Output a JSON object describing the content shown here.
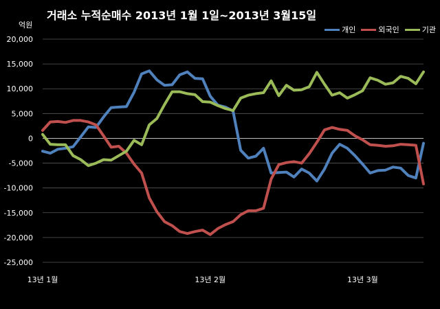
{
  "chart_data": {
    "type": "line",
    "title": "거래소  누적순매수 2013년 1월 1일~2013년 3월15일",
    "ylabel": "억원",
    "xlabel": "",
    "ylim": [
      -25000,
      20000
    ],
    "yticks": [
      20000,
      15000,
      10000,
      5000,
      0,
      -5000,
      -10000,
      -15000,
      -20000,
      -25000
    ],
    "ytick_labels": [
      "20,000",
      "15,000",
      "10,000",
      "5,000",
      "0",
      "-5,000",
      "-10,000",
      "-15,000",
      "-20,000",
      "-25,000"
    ],
    "x_tick_labels": [
      "13년 1월",
      "13년 2월",
      "13년 3월"
    ],
    "x_tick_positions": [
      1,
      23,
      43
    ],
    "grid": "horizontal",
    "legend_position": "top-right",
    "x": [
      1,
      2,
      3,
      4,
      5,
      6,
      7,
      8,
      9,
      10,
      11,
      12,
      13,
      14,
      15,
      16,
      17,
      18,
      19,
      20,
      21,
      22,
      23,
      24,
      25,
      26,
      27,
      28,
      29,
      30,
      31,
      32,
      33,
      34,
      35,
      36,
      37,
      38,
      39,
      40,
      41,
      42,
      43,
      44,
      45,
      46,
      47,
      48,
      49,
      50,
      51
    ],
    "series": [
      {
        "name": "개인",
        "color": "#4f81bd",
        "values": [
          -2600,
          -3000,
          -2200,
          -2000,
          -1700,
          300,
          2300,
          2200,
          4300,
          6200,
          6300,
          6400,
          9300,
          13000,
          13600,
          11800,
          10700,
          10800,
          12800,
          13400,
          12100,
          12000,
          8500,
          6700,
          6300,
          5500,
          -2400,
          -4000,
          -3600,
          -2000,
          -7000,
          -6900,
          -6800,
          -7800,
          -6200,
          -7000,
          -8600,
          -6200,
          -3000,
          -1200,
          -2000,
          -3500,
          -5200,
          -7000,
          -6500,
          -6400,
          -5800,
          -6000,
          -7500,
          -8000,
          -1000
        ]
      },
      {
        "name": "외국인",
        "color": "#c0504d",
        "values": [
          1600,
          3300,
          3400,
          3200,
          3600,
          3600,
          3300,
          2700,
          500,
          -1800,
          -1600,
          -3000,
          -5200,
          -7000,
          -12000,
          -14800,
          -16800,
          -17600,
          -18800,
          -19200,
          -18800,
          -18500,
          -19400,
          -18200,
          -17400,
          -16800,
          -15400,
          -14600,
          -14600,
          -14100,
          -8200,
          -5300,
          -4900,
          -4700,
          -5000,
          -3100,
          -800,
          1700,
          2200,
          1800,
          1600,
          500,
          -300,
          -1300,
          -1400,
          -1600,
          -1500,
          -1200,
          -1300,
          -1400,
          -9200
        ]
      },
      {
        "name": "기관",
        "color": "#9bbb59",
        "values": [
          800,
          -1200,
          -1300,
          -1300,
          -3500,
          -4300,
          -5500,
          -5000,
          -4300,
          -4400,
          -3500,
          -2600,
          -400,
          -1300,
          2700,
          4000,
          6800,
          9400,
          9400,
          9000,
          8800,
          7400,
          7300,
          6600,
          6000,
          5600,
          8100,
          8700,
          9000,
          9200,
          11600,
          8600,
          10700,
          9700,
          9800,
          10400,
          13300,
          10900,
          8700,
          9200,
          8100,
          8800,
          9600,
          12200,
          11700,
          10900,
          11200,
          12500,
          12100,
          11000,
          13400
        ]
      }
    ]
  }
}
